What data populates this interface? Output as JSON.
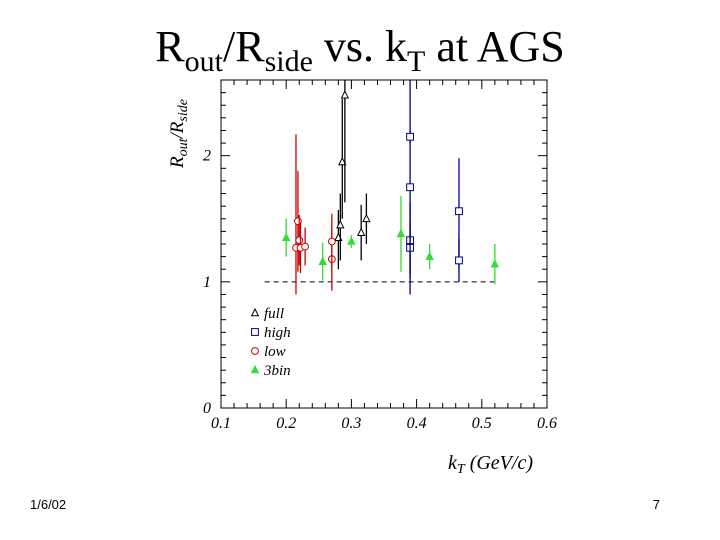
{
  "slide": {
    "title_main_1": "R",
    "title_sub_1": "out",
    "title_main_2": "/R",
    "title_sub_2": "side",
    "title_tail": " vs. k",
    "title_sub_3": "T",
    "title_end": " at AGS",
    "date": "1/6/02",
    "page_number": "7"
  },
  "chart_data": {
    "type": "scatter",
    "xlabel_main": "k",
    "xlabel_sub": "T",
    "xlabel_rest": " (GeV/c)",
    "ylabel_main": "R",
    "ylabel_sub1": "out",
    "ylabel_mid": "/R",
    "ylabel_sub2": "side",
    "xlim": [
      0.1,
      0.6
    ],
    "ylim": [
      0,
      2.6
    ],
    "x_ticks": [
      {
        "value": 0.1,
        "label": "0.1"
      },
      {
        "value": 0.2,
        "label": "0.2"
      },
      {
        "value": 0.3,
        "label": "0.3"
      },
      {
        "value": 0.4,
        "label": "0.4"
      },
      {
        "value": 0.5,
        "label": "0.5"
      },
      {
        "value": 0.6,
        "label": "0.6"
      }
    ],
    "y_ticks": [
      {
        "value": 0,
        "label": "0"
      },
      {
        "value": 1,
        "label": "1"
      },
      {
        "value": 2,
        "label": "2"
      }
    ],
    "reference_line": {
      "y": 1.0,
      "x_range": [
        0.167,
        0.525
      ],
      "style": "dashed"
    },
    "legend_position": "lower-left",
    "series": [
      {
        "name": "full",
        "marker": "open-triangle",
        "color": "#000000",
        "points": [
          {
            "x": 0.28,
            "y": 1.35,
            "yerr_low": 0.25,
            "yerr_high": 0.22
          },
          {
            "x": 0.283,
            "y": 1.45,
            "yerr_low": 0.28,
            "yerr_high": 0.25
          },
          {
            "x": 0.286,
            "y": 1.95,
            "yerr_low": 0.45,
            "yerr_high": 0.5
          },
          {
            "x": 0.29,
            "y": 2.48,
            "yerr_low": 0.85,
            "yerr_high": 0.12
          },
          {
            "x": 0.315,
            "y": 1.39,
            "yerr_low": 0.22,
            "yerr_high": 0.22
          },
          {
            "x": 0.323,
            "y": 1.5,
            "yerr_low": 0.2,
            "yerr_high": 0.2
          }
        ]
      },
      {
        "name": "high",
        "marker": "open-square",
        "color": "#00008b",
        "points": [
          {
            "x": 0.39,
            "y": 1.33,
            "yerr_low": 0.3,
            "yerr_high": 0.3
          },
          {
            "x": 0.39,
            "y": 1.27,
            "yerr_low": 0.2,
            "yerr_high": 0.2
          },
          {
            "x": 0.39,
            "y": 1.75,
            "yerr_low": 0.85,
            "yerr_high": 0.85
          },
          {
            "x": 0.39,
            "y": 2.15,
            "yerr_low": 0.05,
            "yerr_high": 0.05
          },
          {
            "x": 0.465,
            "y": 1.56,
            "yerr_low": 0.45,
            "yerr_high": 0.42
          },
          {
            "x": 0.465,
            "y": 1.17,
            "yerr_low": 0.17,
            "yerr_high": 0.17
          }
        ]
      },
      {
        "name": "low",
        "marker": "open-circle",
        "color": "#cc0000",
        "points": [
          {
            "x": 0.215,
            "y": 1.27,
            "yerr_low": 0.37,
            "yerr_high": 0.9
          },
          {
            "x": 0.218,
            "y": 1.48,
            "yerr_low": 0.4,
            "yerr_high": 0.4
          },
          {
            "x": 0.22,
            "y": 1.33,
            "yerr_low": 0.2,
            "yerr_high": 0.2
          },
          {
            "x": 0.222,
            "y": 1.27,
            "yerr_low": 0.2,
            "yerr_high": 0.2
          },
          {
            "x": 0.229,
            "y": 1.28,
            "yerr_low": 0.15,
            "yerr_high": 0.15
          },
          {
            "x": 0.27,
            "y": 1.18,
            "yerr_low": 0.25,
            "yerr_high": 0.25
          },
          {
            "x": 0.27,
            "y": 1.32,
            "yerr_low": 0.22,
            "yerr_high": 0.22
          }
        ]
      },
      {
        "name": "3bin",
        "marker": "filled-triangle",
        "color": "#33dd33",
        "points": [
          {
            "x": 0.2,
            "y": 1.35,
            "yerr_low": 0.15,
            "yerr_high": 0.15
          },
          {
            "x": 0.256,
            "y": 1.16,
            "yerr_low": 0.15,
            "yerr_high": 0.15
          },
          {
            "x": 0.3,
            "y": 1.32,
            "yerr_low": 0.05,
            "yerr_high": 0.05
          },
          {
            "x": 0.376,
            "y": 1.38,
            "yerr_low": 0.3,
            "yerr_high": 0.3
          },
          {
            "x": 0.42,
            "y": 1.2,
            "yerr_low": 0.1,
            "yerr_high": 0.1
          },
          {
            "x": 0.52,
            "y": 1.14,
            "yerr_low": 0.16,
            "yerr_high": 0.16
          }
        ]
      }
    ]
  }
}
